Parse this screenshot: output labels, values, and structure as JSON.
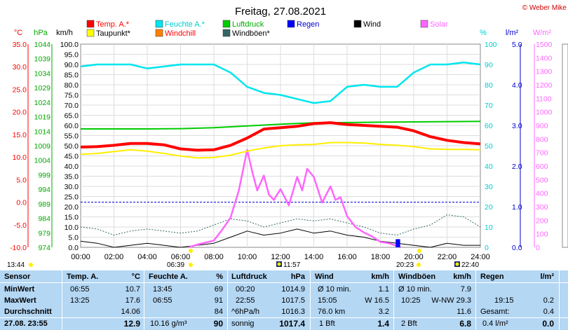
{
  "title": "Freitag, 27.08.2021",
  "copyright": "© Weber Mike",
  "unit_labels": {
    "celsius": "°C",
    "hpa": "hPa",
    "kmh": "km/h",
    "percent": "%",
    "lm2": "l/m²",
    "wm2": "W/m²"
  },
  "legend": [
    {
      "label": "Temp. A.*",
      "color": "#ff0000"
    },
    {
      "label": "Feuchte A.*",
      "color": "#00e5ee"
    },
    {
      "label": "Luftdruck",
      "color": "#00cc00"
    },
    {
      "label": "Regen",
      "color": "#0000ff"
    },
    {
      "label": "Wind",
      "color": "#000000"
    },
    {
      "label": "Solar",
      "color": "#ff66ff"
    },
    {
      "label": "Taupunkt*",
      "color": "#ffff00"
    },
    {
      "label": "Windchill",
      "color": "#ff8000"
    },
    {
      "label": "Windböen*",
      "color": "#336666"
    }
  ],
  "events": {
    "sunrise": "06:39",
    "sunset": "20:23",
    "moonrise": "13:44",
    "moonset_left": "11:57",
    "moonset_right": "22:40"
  },
  "colors": {
    "temp": "#ff0000",
    "humidity": "#00e5ee",
    "pressure": "#00cc00",
    "dewpoint": "#ffff00",
    "windchill": "#e07000",
    "wind": "#000000",
    "gust": "#336666",
    "solar": "#ff66ff",
    "rain": "#0000ff",
    "table_bg": "#b4d7f4"
  },
  "chart_data": {
    "type": "line",
    "title": "Freitag, 27.08.2021",
    "x_ticks": [
      "00:00",
      "02:00",
      "04:00",
      "06:00",
      "08:00",
      "10:00",
      "12:00",
      "14:00",
      "16:00",
      "18:00",
      "20:00",
      "22:00",
      "24:00"
    ],
    "axes": {
      "celsius": {
        "range": [
          -10,
          35
        ],
        "ticks": [
          "35.0",
          "30.0",
          "25.0",
          "20.0",
          "15.0",
          "10.0",
          "5.0",
          "0.0",
          "-5.0",
          "-10.0"
        ]
      },
      "hpa": {
        "range": [
          974,
          1044
        ],
        "ticks": [
          "1044",
          "1039",
          "1034",
          "1029",
          "1024",
          "1019",
          "1014",
          "1009",
          "1004",
          "999",
          "994",
          "989",
          "984",
          "979",
          "974"
        ]
      },
      "kmh": {
        "range": [
          0,
          100
        ],
        "ticks": [
          "100.0",
          "95.0",
          "90.0",
          "85.0",
          "80.0",
          "75.0",
          "70.0",
          "65.0",
          "60.0",
          "55.0",
          "50.0",
          "45.0",
          "40.0",
          "35.0",
          "30.0",
          "25.0",
          "20.0",
          "15.0",
          "10.0",
          "5.0",
          "0.0"
        ]
      },
      "percent": {
        "range": [
          0,
          100
        ],
        "ticks": [
          "100",
          "90",
          "80",
          "70",
          "60",
          "50",
          "40",
          "30",
          "20",
          "10",
          "0"
        ]
      },
      "rain": {
        "range": [
          0,
          5
        ],
        "ticks": [
          "5.0",
          "4.0",
          "3.0",
          "2.0",
          "1.0",
          "0.0"
        ]
      },
      "solar": {
        "range": [
          0,
          1500
        ],
        "ticks": [
          "1500",
          "1400",
          "1300",
          "1200",
          "1100",
          "1000",
          "900",
          "800",
          "700",
          "600",
          "500",
          "400",
          "300",
          "200",
          "100",
          "0"
        ]
      }
    },
    "series": [
      {
        "name": "Temp. A.*",
        "axis": "celsius",
        "x": [
          0,
          1,
          2,
          3,
          4,
          5,
          6,
          7,
          8,
          9,
          10,
          11,
          12,
          13,
          14,
          15,
          16,
          17,
          18,
          19,
          20,
          21,
          22,
          23,
          24
        ],
        "values": [
          12.2,
          12.3,
          12.6,
          13.0,
          13.0,
          12.7,
          11.8,
          11.5,
          11.6,
          12.6,
          14.2,
          16.2,
          16.5,
          16.8,
          17.4,
          17.6,
          17.2,
          17.0,
          16.8,
          16.6,
          15.8,
          14.5,
          13.7,
          13.2,
          12.9
        ]
      },
      {
        "name": "Taupunkt*",
        "axis": "celsius",
        "x": [
          0,
          1,
          2,
          3,
          4,
          5,
          6,
          7,
          8,
          9,
          10,
          11,
          12,
          13,
          14,
          15,
          16,
          17,
          18,
          19,
          20,
          21,
          22,
          23,
          24
        ],
        "values": [
          10.6,
          10.8,
          11.2,
          11.6,
          11.3,
          10.8,
          10.2,
          9.8,
          9.9,
          10.4,
          11.3,
          12.0,
          12.5,
          12.7,
          12.8,
          13.2,
          13.2,
          13.1,
          12.8,
          12.6,
          12.3,
          11.8,
          11.7,
          11.7,
          11.6
        ]
      },
      {
        "name": "Feuchte A.*",
        "axis": "percent",
        "x": [
          0,
          1,
          2,
          3,
          4,
          5,
          6,
          7,
          8,
          9,
          10,
          11,
          12,
          13,
          14,
          15,
          16,
          17,
          18,
          19,
          20,
          21,
          22,
          23,
          24
        ],
        "values": [
          89,
          90,
          90,
          90,
          88,
          89,
          90,
          90,
          90,
          86,
          79,
          76,
          75,
          73,
          71,
          72,
          79,
          80,
          79,
          79,
          86,
          90,
          90,
          91,
          90
        ]
      },
      {
        "name": "Luftdruck",
        "axis": "hpa",
        "x": [
          0,
          2,
          4,
          6,
          8,
          10,
          12,
          14,
          16,
          18,
          20,
          22,
          24
        ],
        "values": [
          1014.8,
          1014.8,
          1014.8,
          1014.9,
          1015.2,
          1015.8,
          1016.4,
          1016.9,
          1017.0,
          1017.1,
          1017.2,
          1017.3,
          1017.4
        ]
      },
      {
        "name": "Wind",
        "axis": "kmh",
        "x": [
          0,
          1,
          2,
          3,
          4,
          5,
          6,
          7,
          8,
          9,
          10,
          11,
          12,
          13,
          14,
          15,
          16,
          17,
          18,
          19,
          20,
          21,
          22,
          23,
          24
        ],
        "values": [
          3,
          2,
          0,
          1,
          2,
          1,
          0,
          1,
          2,
          5,
          8,
          6,
          7,
          9,
          7,
          8,
          6,
          5,
          3,
          2,
          1,
          0,
          2,
          1,
          1
        ]
      },
      {
        "name": "Windböen*",
        "axis": "kmh",
        "x": [
          0,
          1,
          2,
          3,
          4,
          5,
          6,
          7,
          8,
          9,
          10,
          11,
          12,
          13,
          14,
          15,
          16,
          17,
          18,
          19,
          20,
          21,
          22,
          23,
          24
        ],
        "values": [
          10,
          9,
          6,
          8,
          9,
          8,
          7,
          8,
          11,
          14,
          13,
          10,
          12,
          14,
          13,
          14,
          12,
          10,
          7,
          6,
          9,
          11,
          16,
          15,
          10
        ]
      },
      {
        "name": "Solar",
        "axis": "solar",
        "x": [
          6.5,
          7,
          8,
          8.5,
          9,
          9.5,
          10,
          10.3,
          10.6,
          11,
          11.3,
          11.6,
          12,
          12.5,
          13,
          13.3,
          13.6,
          14,
          14.5,
          15,
          15.3,
          15.6,
          16,
          16.5,
          17,
          17.5,
          18,
          18.5,
          19,
          19.2
        ],
        "values": [
          0,
          20,
          50,
          130,
          220,
          420,
          720,
          560,
          420,
          530,
          390,
          350,
          430,
          310,
          520,
          420,
          580,
          520,
          330,
          450,
          350,
          370,
          230,
          150,
          110,
          80,
          40,
          30,
          10,
          0
        ]
      },
      {
        "name": "Regen",
        "axis": "rain",
        "x": [
          19.0,
          19.1
        ],
        "values": [
          0.2,
          0.2
        ]
      }
    ]
  },
  "table": {
    "headers": {
      "sensor": "Sensor",
      "temp": "Temp. A.",
      "temp_unit": "°C",
      "feuchte": "Feuchte A.",
      "feuchte_unit": "%",
      "luftdruck": "Luftdruck",
      "luftdruck_unit": "hPa",
      "wind": "Wind",
      "wind_unit": "km/h",
      "windboeen": "Windböen",
      "windboeen_unit": "km/h",
      "regen": "Regen",
      "regen_unit": "l/m²"
    },
    "rows": [
      {
        "label": "MinWert",
        "temp_time": "06:55",
        "temp_val": "10.7",
        "feuchte_time": "13:45",
        "feuchte_val": "69",
        "luft_time": "00:20",
        "luft_val": "1014.9",
        "wind_time": "Ø 10 min.",
        "wind_val": "1.1",
        "boe_time": "Ø 10 min.",
        "boe_val": "7.9",
        "regen_time": "",
        "regen_val": ""
      },
      {
        "label": "MaxWert",
        "temp_time": "13:25",
        "temp_val": "17.6",
        "feuchte_time": "06:55",
        "feuchte_val": "91",
        "luft_time": "22:55",
        "luft_val": "1017.5",
        "wind_time": "15:05",
        "wind_val": "W 16.5",
        "boe_time": "10:25",
        "boe_val": "W-NW 29.3",
        "regen_time": "19:15",
        "regen_val": "0.2"
      },
      {
        "label": "Durchschnitt",
        "temp_time": "",
        "temp_val": "14.06",
        "feuchte_time": "",
        "feuchte_val": "84",
        "luft_time": "^6hPa/h",
        "luft_val": "1016.3",
        "wind_time": "76.0 km",
        "wind_val": "3.2",
        "boe_time": "",
        "boe_val": "11.6",
        "regen_time": "Gesamt:",
        "regen_val": "0.4"
      }
    ],
    "current": {
      "label": "27.08. 23:55",
      "temp": "12.9",
      "feuchte_extra": "10.16 g/m³",
      "feuchte": "90",
      "luft_extra": "sonnig",
      "luft": "1017.4",
      "wind_extra": "1 Bft",
      "wind": "1.4",
      "boe_extra": "2 Bft",
      "boe": "6.8",
      "regen_extra": "0.4 l/m²",
      "regen": "0.0"
    }
  }
}
